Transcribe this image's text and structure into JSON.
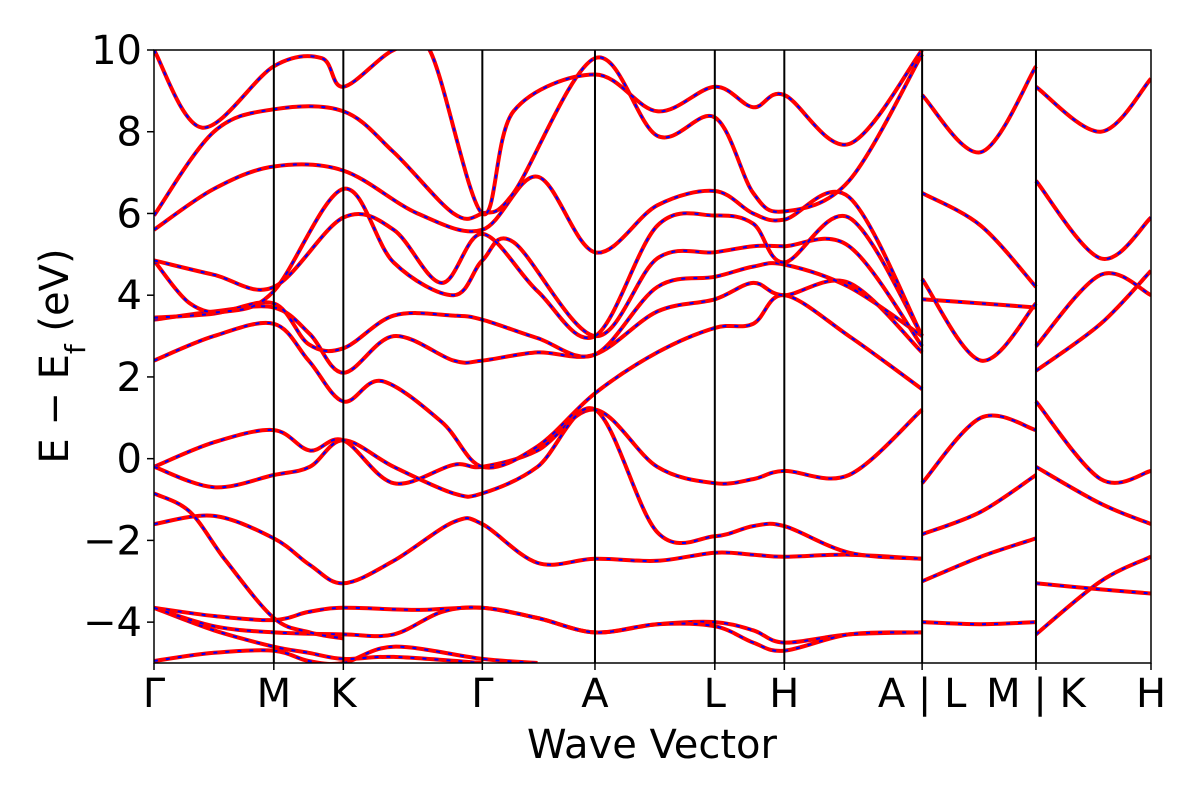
{
  "chart_data": {
    "type": "line",
    "xlabel": "Wave Vector",
    "ylabel": "E − E",
    "ylabel_subscript": "f",
    "ylabel_unit": " (eV)",
    "ylim": [
      -5,
      10
    ],
    "yticks": [
      -4,
      -2,
      0,
      2,
      4,
      6,
      8,
      10
    ],
    "ytick_labels": [
      "−4",
      "−2",
      "0",
      "2",
      "4",
      "6",
      "8",
      "10"
    ],
    "xlim": [
      0,
      8.32
    ],
    "kpoints": [
      {
        "label": "Γ",
        "x": 0
      },
      {
        "label": "M",
        "x": 1.0
      },
      {
        "label": "K",
        "x": 1.58
      },
      {
        "label": "Γ",
        "x": 2.74
      },
      {
        "label": "A",
        "x": 3.68
      },
      {
        "label": "L",
        "x": 4.68
      },
      {
        "label": "H",
        "x": 5.26
      },
      {
        "label": "A | L",
        "x": 6.41
      },
      {
        "label": "M | K",
        "x": 7.36
      },
      {
        "label": "H",
        "x": 8.32
      }
    ],
    "colors": {
      "band_primary": "#ff0000",
      "band_secondary": "#0000ff",
      "kpoint_line": "#000000"
    },
    "series": [
      {
        "values": [
          [
            0,
            -4.95
          ],
          [
            0.5,
            -4.75
          ],
          [
            1.0,
            -4.7
          ],
          [
            1.29,
            -4.95
          ],
          [
            1.58,
            -5.0
          ],
          [
            2.0,
            -4.6
          ],
          [
            2.74,
            -4.9
          ],
          [
            3.2,
            -5.0
          ]
        ]
      },
      {
        "values": [
          [
            0,
            -3.65
          ],
          [
            0.5,
            -4.2
          ],
          [
            1.0,
            -4.6
          ],
          [
            1.29,
            -4.75
          ],
          [
            1.58,
            -4.9
          ],
          [
            2.0,
            -4.85
          ],
          [
            2.74,
            -5.0
          ]
        ]
      },
      {
        "values": [
          [
            0,
            -3.65
          ],
          [
            0.5,
            -3.85
          ],
          [
            1.0,
            -3.95
          ],
          [
            1.29,
            -3.75
          ],
          [
            1.58,
            -3.65
          ],
          [
            2.2,
            -3.7
          ],
          [
            2.74,
            -3.65
          ],
          [
            3.2,
            -3.9
          ],
          [
            3.68,
            -4.25
          ],
          [
            4.2,
            -4.05
          ],
          [
            4.68,
            -4.0
          ],
          [
            5.0,
            -4.2
          ],
          [
            5.26,
            -4.5
          ],
          [
            5.8,
            -4.3
          ],
          [
            6.41,
            -4.25
          ]
        ]
      },
      {
        "values": [
          [
            0,
            -3.65
          ],
          [
            0.5,
            -4.1
          ],
          [
            1.0,
            -4.25
          ],
          [
            1.58,
            -4.3
          ],
          [
            2.0,
            -4.3
          ],
          [
            2.4,
            -3.75
          ],
          [
            2.74,
            -3.65
          ],
          [
            3.2,
            -3.9
          ],
          [
            3.68,
            -4.25
          ],
          [
            4.2,
            -4.05
          ],
          [
            4.68,
            -4.1
          ],
          [
            5.0,
            -4.5
          ],
          [
            5.26,
            -4.7
          ],
          [
            5.8,
            -4.3
          ],
          [
            6.41,
            -4.25
          ]
        ]
      },
      {
        "values": [
          [
            0,
            -1.6
          ],
          [
            0.5,
            -1.4
          ],
          [
            1.0,
            -1.95
          ],
          [
            1.3,
            -2.6
          ],
          [
            1.58,
            -3.05
          ],
          [
            2.0,
            -2.5
          ],
          [
            2.5,
            -1.55
          ],
          [
            2.74,
            -1.6
          ],
          [
            3.2,
            -2.55
          ],
          [
            3.68,
            -2.45
          ],
          [
            4.2,
            -2.5
          ],
          [
            4.68,
            -2.3
          ],
          [
            5.0,
            -2.35
          ],
          [
            5.26,
            -2.4
          ],
          [
            5.8,
            -2.35
          ],
          [
            6.41,
            -2.45
          ]
        ]
      },
      {
        "values": [
          [
            0,
            -0.85
          ],
          [
            0.3,
            -1.3
          ],
          [
            0.6,
            -2.5
          ],
          [
            1.0,
            -3.9
          ],
          [
            1.3,
            -4.25
          ],
          [
            1.58,
            -4.4
          ]
        ]
      },
      {
        "values": [
          [
            0,
            -0.2
          ],
          [
            0.5,
            0.4
          ],
          [
            1.0,
            0.7
          ],
          [
            1.3,
            0.2
          ],
          [
            1.58,
            0.45
          ],
          [
            2.0,
            -0.6
          ],
          [
            2.5,
            -0.15
          ],
          [
            2.74,
            -0.2
          ],
          [
            3.2,
            0.2
          ],
          [
            3.68,
            1.2
          ],
          [
            4.2,
            -0.2
          ],
          [
            4.68,
            -0.6
          ],
          [
            5.0,
            -0.5
          ],
          [
            5.26,
            -0.3
          ],
          [
            5.8,
            -0.4
          ],
          [
            6.41,
            1.2
          ]
        ]
      },
      {
        "values": [
          [
            0,
            -0.2
          ],
          [
            0.5,
            -0.7
          ],
          [
            1.0,
            -0.4
          ],
          [
            1.3,
            -0.2
          ],
          [
            1.58,
            0.45
          ],
          [
            2.0,
            -0.2
          ],
          [
            2.5,
            -0.85
          ],
          [
            2.74,
            -0.85
          ],
          [
            3.2,
            -0.2
          ],
          [
            3.68,
            1.2
          ],
          [
            4.2,
            -1.8
          ],
          [
            4.68,
            -1.9
          ],
          [
            5.0,
            -1.65
          ],
          [
            5.26,
            -1.65
          ],
          [
            5.8,
            -2.3
          ],
          [
            6.41,
            -2.45
          ]
        ]
      },
      {
        "values": [
          [
            0,
            2.4
          ],
          [
            0.5,
            3.0
          ],
          [
            1.0,
            3.3
          ],
          [
            1.29,
            2.4
          ],
          [
            1.58,
            1.4
          ],
          [
            1.9,
            1.9
          ],
          [
            2.4,
            0.9
          ],
          [
            2.74,
            -0.2
          ],
          [
            3.2,
            0.3
          ],
          [
            3.68,
            1.6
          ],
          [
            4.2,
            2.6
          ],
          [
            4.68,
            3.2
          ],
          [
            5.0,
            3.3
          ],
          [
            5.26,
            4.0
          ],
          [
            5.8,
            3.0
          ],
          [
            6.41,
            1.7
          ]
        ]
      },
      {
        "values": [
          [
            0,
            3.4
          ],
          [
            0.5,
            3.6
          ],
          [
            1.0,
            3.7
          ],
          [
            1.3,
            3.05
          ],
          [
            1.58,
            2.1
          ],
          [
            2.0,
            3.0
          ],
          [
            2.5,
            2.4
          ],
          [
            2.74,
            2.4
          ],
          [
            3.2,
            2.6
          ],
          [
            3.68,
            2.55
          ],
          [
            4.2,
            3.6
          ],
          [
            4.68,
            3.9
          ],
          [
            5.0,
            4.3
          ],
          [
            5.26,
            4.0
          ],
          [
            5.8,
            4.3
          ],
          [
            6.41,
            2.6
          ]
        ]
      },
      {
        "values": [
          [
            0,
            3.45
          ],
          [
            0.5,
            3.55
          ],
          [
            1.0,
            3.8
          ],
          [
            1.29,
            2.8
          ],
          [
            1.58,
            2.7
          ],
          [
            2.0,
            3.5
          ],
          [
            2.5,
            3.5
          ],
          [
            2.74,
            3.4
          ],
          [
            3.2,
            2.95
          ],
          [
            3.68,
            2.55
          ],
          [
            4.2,
            4.2
          ],
          [
            4.68,
            4.45
          ],
          [
            5.0,
            4.7
          ],
          [
            5.26,
            4.75
          ],
          [
            5.8,
            4.2
          ],
          [
            6.41,
            3.0
          ]
        ]
      },
      {
        "values": [
          [
            0,
            4.85
          ],
          [
            0.3,
            3.8
          ],
          [
            0.6,
            3.6
          ],
          [
            1.0,
            4.1
          ],
          [
            1.58,
            6.6
          ],
          [
            2.0,
            4.8
          ],
          [
            2.5,
            4.0
          ],
          [
            2.74,
            4.85
          ],
          [
            3.0,
            5.3
          ],
          [
            3.68,
            3.0
          ],
          [
            4.2,
            4.9
          ],
          [
            4.68,
            5.05
          ],
          [
            5.0,
            5.2
          ],
          [
            5.26,
            5.2
          ],
          [
            5.8,
            5.2
          ],
          [
            6.41,
            2.75
          ]
        ]
      },
      {
        "values": [
          [
            0,
            4.85
          ],
          [
            0.5,
            4.5
          ],
          [
            1.0,
            4.2
          ],
          [
            1.58,
            5.9
          ],
          [
            2.0,
            5.6
          ],
          [
            2.4,
            4.3
          ],
          [
            2.74,
            5.5
          ],
          [
            3.2,
            4.1
          ],
          [
            3.68,
            3.0
          ],
          [
            4.2,
            5.7
          ],
          [
            4.68,
            5.95
          ],
          [
            5.0,
            5.75
          ],
          [
            5.26,
            4.8
          ],
          [
            5.8,
            5.9
          ],
          [
            6.41,
            3.0
          ]
        ]
      },
      {
        "values": [
          [
            0,
            5.6
          ],
          [
            0.5,
            6.6
          ],
          [
            1.0,
            7.15
          ],
          [
            1.58,
            7.05
          ],
          [
            2.2,
            6.0
          ],
          [
            2.74,
            5.6
          ],
          [
            3.2,
            6.9
          ],
          [
            3.68,
            5.05
          ],
          [
            4.2,
            6.2
          ],
          [
            4.68,
            6.55
          ],
          [
            5.0,
            6.0
          ],
          [
            5.26,
            5.85
          ],
          [
            5.8,
            6.4
          ],
          [
            6.41,
            3.0
          ]
        ]
      },
      {
        "values": [
          [
            0,
            5.95
          ],
          [
            0.5,
            8.0
          ],
          [
            1.0,
            8.55
          ],
          [
            1.58,
            8.5
          ],
          [
            2.0,
            7.5
          ],
          [
            2.5,
            6.0
          ],
          [
            2.74,
            6.0
          ],
          [
            3.0,
            6.5
          ],
          [
            3.68,
            9.8
          ],
          [
            4.2,
            7.9
          ],
          [
            4.68,
            8.35
          ],
          [
            5.0,
            6.5
          ],
          [
            5.26,
            6.05
          ],
          [
            5.8,
            6.8
          ],
          [
            6.41,
            9.9
          ]
        ]
      },
      {
        "values": [
          [
            0,
            10
          ],
          [
            0.4,
            8.1
          ],
          [
            1.0,
            9.6
          ],
          [
            1.4,
            9.8
          ],
          [
            1.58,
            9.1
          ],
          [
            2.0,
            10
          ],
          [
            2.3,
            10
          ],
          [
            2.74,
            6.0
          ],
          [
            3.0,
            8.5
          ],
          [
            3.68,
            9.4
          ],
          [
            4.2,
            8.5
          ],
          [
            4.68,
            9.1
          ],
          [
            5.0,
            8.6
          ],
          [
            5.26,
            8.9
          ],
          [
            5.8,
            7.7
          ],
          [
            6.41,
            10
          ]
        ]
      },
      {
        "values": [
          [
            6.41,
            -0.6
          ],
          [
            6.9,
            1.0
          ],
          [
            7.36,
            0.7
          ]
        ]
      },
      {
        "values": [
          [
            6.41,
            -1.85
          ],
          [
            6.9,
            -1.3
          ],
          [
            7.36,
            -0.4
          ]
        ]
      },
      {
        "values": [
          [
            6.41,
            -3.0
          ],
          [
            6.9,
            -2.4
          ],
          [
            7.36,
            -1.95
          ]
        ]
      },
      {
        "values": [
          [
            6.41,
            -4.0
          ],
          [
            6.9,
            -4.05
          ],
          [
            7.36,
            -4.0
          ]
        ]
      },
      {
        "values": [
          [
            6.41,
            3.9
          ],
          [
            6.9,
            3.8
          ],
          [
            7.36,
            3.7
          ]
        ]
      },
      {
        "values": [
          [
            6.41,
            4.4
          ],
          [
            6.9,
            2.4
          ],
          [
            7.36,
            3.8
          ]
        ]
      },
      {
        "values": [
          [
            6.41,
            6.5
          ],
          [
            6.9,
            5.7
          ],
          [
            7.36,
            4.2
          ]
        ]
      },
      {
        "values": [
          [
            6.41,
            8.9
          ],
          [
            6.9,
            7.5
          ],
          [
            7.36,
            9.6
          ]
        ]
      },
      {
        "values": [
          [
            7.36,
            1.4
          ],
          [
            7.9,
            -0.5
          ],
          [
            8.32,
            -0.3
          ]
        ]
      },
      {
        "values": [
          [
            7.36,
            -0.2
          ],
          [
            7.9,
            -1.1
          ],
          [
            8.32,
            -1.6
          ]
        ]
      },
      {
        "values": [
          [
            7.36,
            -4.3
          ],
          [
            7.9,
            -3.0
          ],
          [
            8.32,
            -2.4
          ]
        ]
      },
      {
        "values": [
          [
            7.36,
            -3.05
          ],
          [
            7.9,
            -3.2
          ],
          [
            8.32,
            -3.3
          ]
        ]
      },
      {
        "values": [
          [
            7.36,
            2.15
          ],
          [
            7.9,
            3.3
          ],
          [
            8.32,
            4.6
          ]
        ]
      },
      {
        "values": [
          [
            7.36,
            2.75
          ],
          [
            7.9,
            4.5
          ],
          [
            8.32,
            4.0
          ]
        ]
      },
      {
        "values": [
          [
            7.36,
            6.8
          ],
          [
            7.9,
            4.9
          ],
          [
            8.32,
            5.9
          ]
        ]
      },
      {
        "values": [
          [
            7.36,
            9.1
          ],
          [
            7.9,
            8.0
          ],
          [
            8.32,
            9.3
          ]
        ]
      }
    ]
  }
}
